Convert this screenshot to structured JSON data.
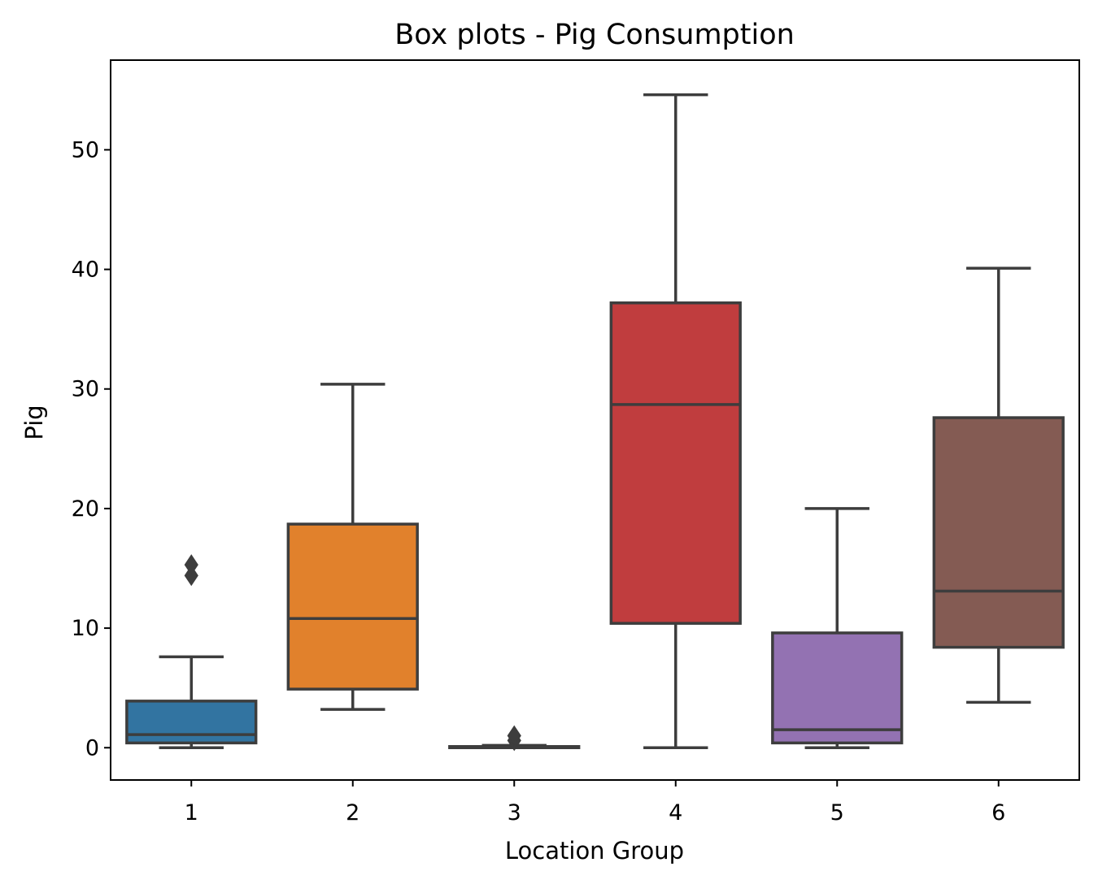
{
  "chart_data": {
    "type": "box",
    "title": "Box plots - Pig Consumption",
    "xlabel": "Location Group",
    "ylabel": "Pig",
    "categories": [
      "1",
      "2",
      "3",
      "4",
      "5",
      "6"
    ],
    "ylim": [
      -2.7,
      57.5
    ],
    "yticks": [
      0,
      10,
      20,
      30,
      40,
      50
    ],
    "grid": false,
    "legend": "none",
    "boxes": [
      {
        "category": "1",
        "whisker_low": 0.0,
        "q1": 0.4,
        "median": 1.1,
        "q3": 3.9,
        "whisker_high": 7.6,
        "outliers": [
          14.4,
          15.3
        ],
        "color": "#3274a1"
      },
      {
        "category": "2",
        "whisker_low": 3.2,
        "q1": 4.9,
        "median": 10.8,
        "q3": 18.7,
        "whisker_high": 30.4,
        "outliers": [],
        "color": "#e1812c"
      },
      {
        "category": "3",
        "whisker_low": 0.0,
        "q1": 0.0,
        "median": 0.0,
        "q3": 0.1,
        "whisker_high": 0.2,
        "outliers": [
          0.6,
          1.0
        ],
        "color": "#3a923a"
      },
      {
        "category": "4",
        "whisker_low": 0.0,
        "q1": 10.4,
        "median": 28.7,
        "q3": 37.2,
        "whisker_high": 54.6,
        "outliers": [],
        "color": "#c03d3e"
      },
      {
        "category": "5",
        "whisker_low": 0.0,
        "q1": 0.4,
        "median": 1.5,
        "q3": 9.6,
        "whisker_high": 20.0,
        "outliers": [],
        "color": "#9372b2"
      },
      {
        "category": "6",
        "whisker_low": 3.8,
        "q1": 8.4,
        "median": 13.1,
        "q3": 27.6,
        "whisker_high": 40.1,
        "outliers": [],
        "color": "#845b53"
      }
    ],
    "line_color": "#3d3d3d"
  }
}
